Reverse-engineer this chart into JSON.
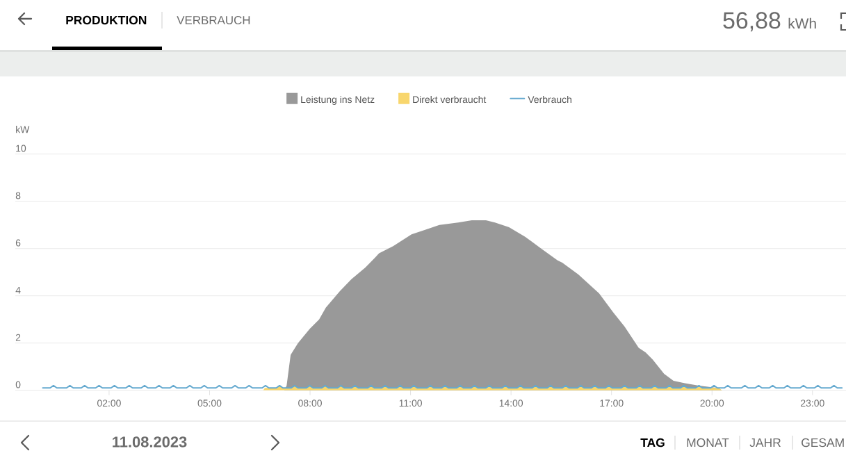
{
  "chart_data": {
    "type": "area",
    "ylabel": "kW",
    "annotations": [
      "PRODUKTION",
      "VERBRAUCH",
      "56,88",
      "kWh",
      "11.08.2023",
      "TAG",
      "MONAT",
      "JAHR",
      "GESAM"
    ],
    "xlim": [
      -0.8,
      24
    ],
    "ylim": [
      0,
      10
    ],
    "xticks": [
      {
        "value": 2,
        "label": "02:00"
      },
      {
        "value": 5,
        "label": "05:00"
      },
      {
        "value": 8,
        "label": "08:00"
      },
      {
        "value": 11,
        "label": "11:00"
      },
      {
        "value": 14,
        "label": "14:00"
      },
      {
        "value": 17,
        "label": "17:00"
      },
      {
        "value": 20,
        "label": "20:00"
      },
      {
        "value": 23,
        "label": "23:00"
      }
    ],
    "yticks": [
      0,
      2,
      4,
      6,
      8,
      10
    ],
    "grid": "y",
    "legend": "top",
    "series": [
      {
        "name": "Leistung ins Netz",
        "color": "#999999",
        "x": [
          7.23,
          7.3,
          7.42,
          7.64,
          7.99,
          8.27,
          8.47,
          8.89,
          9.23,
          9.65,
          9.93,
          10.06,
          10.48,
          11.03,
          11.45,
          11.86,
          12.42,
          12.83,
          13.25,
          13.52,
          13.94,
          14.42,
          14.9,
          15.39,
          15.53,
          16.01,
          16.63,
          17.05,
          17.39,
          17.81,
          18.02,
          18.23,
          18.57,
          18.85,
          19.19,
          19.61,
          20.15,
          20.3
        ],
        "values": [
          0,
          0.2,
          1.5,
          2.0,
          2.6,
          3.0,
          3.5,
          4.2,
          4.7,
          5.2,
          5.6,
          5.8,
          6.1,
          6.6,
          6.8,
          7.0,
          7.1,
          7.2,
          7.2,
          7.1,
          6.9,
          6.5,
          6.0,
          5.5,
          5.4,
          4.9,
          4.1,
          3.3,
          2.7,
          1.8,
          1.6,
          1.3,
          0.7,
          0.4,
          0.3,
          0.2,
          0.1,
          0
        ]
      },
      {
        "name": "Direkt verbraucht",
        "color": "#F8D66D",
        "x": [
          6.6,
          6.65,
          6.99,
          7.09,
          7.19,
          7.44,
          7.54,
          7.64,
          7.89,
          7.99,
          8.09,
          8.35,
          8.45,
          8.55,
          8.82,
          8.92,
          9.02,
          9.24,
          9.34,
          9.44,
          9.72,
          9.82,
          9.92,
          10.14,
          10.24,
          10.34,
          10.59,
          10.69,
          10.79,
          11.0,
          11.1,
          11.2,
          11.49,
          11.59,
          11.69,
          11.93,
          12.03,
          12.13,
          12.38,
          12.48,
          12.58,
          12.81,
          12.91,
          13.01,
          13.25,
          13.35,
          13.45,
          13.73,
          13.83,
          13.93,
          14.18,
          14.28,
          14.38,
          14.63,
          14.73,
          14.83,
          15.08,
          15.18,
          15.28,
          15.53,
          15.63,
          15.73,
          15.98,
          16.08,
          16.18,
          16.4,
          16.5,
          16.6,
          16.82,
          16.92,
          17.02,
          17.29,
          17.39,
          17.49,
          17.74,
          17.84,
          17.94,
          18.19,
          18.29,
          18.39,
          18.63,
          18.73,
          18.83,
          19.06,
          19.16,
          19.26,
          19.51,
          19.61,
          19.71,
          20.2,
          20.3
        ],
        "values": [
          0,
          0.1,
          0.1,
          0.2,
          0.1,
          0.1,
          0.2,
          0.1,
          0.1,
          0.2,
          0.1,
          0.1,
          0.2,
          0.1,
          0.1,
          0.2,
          0.1,
          0.1,
          0.2,
          0.1,
          0.1,
          0.2,
          0.1,
          0.1,
          0.2,
          0.1,
          0.1,
          0.2,
          0.1,
          0.1,
          0.2,
          0.1,
          0.1,
          0.2,
          0.1,
          0.1,
          0.2,
          0.1,
          0.1,
          0.2,
          0.1,
          0.1,
          0.2,
          0.1,
          0.1,
          0.2,
          0.1,
          0.1,
          0.2,
          0.1,
          0.1,
          0.2,
          0.1,
          0.1,
          0.2,
          0.1,
          0.1,
          0.2,
          0.1,
          0.1,
          0.2,
          0.1,
          0.1,
          0.2,
          0.1,
          0.1,
          0.2,
          0.1,
          0.1,
          0.2,
          0.1,
          0.1,
          0.2,
          0.1,
          0.1,
          0.2,
          0.1,
          0.1,
          0.2,
          0.1,
          0.1,
          0.2,
          0.1,
          0.1,
          0.2,
          0.1,
          0.1,
          0.2,
          0.1,
          0.1,
          0
        ]
      },
      {
        "name": "Verbrauch",
        "type": "line",
        "color": "#64A9CF",
        "x": [
          0.02,
          0.24,
          0.34,
          0.44,
          0.73,
          0.83,
          0.93,
          1.17,
          1.27,
          1.37,
          1.6,
          1.7,
          1.8,
          2.06,
          2.16,
          2.26,
          2.5,
          2.6,
          2.7,
          2.96,
          3.06,
          3.16,
          3.39,
          3.49,
          3.59,
          3.82,
          3.92,
          4.02,
          4.31,
          4.41,
          4.51,
          4.74,
          4.84,
          4.94,
          5.19,
          5.29,
          5.39,
          5.66,
          5.76,
          5.86,
          6.08,
          6.18,
          6.28,
          6.57,
          6.67,
          6.77,
          6.99,
          7.09,
          7.19,
          7.44,
          7.54,
          7.64,
          7.89,
          7.99,
          8.09,
          8.35,
          8.45,
          8.55,
          8.82,
          8.92,
          9.02,
          9.24,
          9.34,
          9.44,
          9.72,
          9.82,
          9.92,
          10.14,
          10.24,
          10.34,
          10.59,
          10.69,
          10.79,
          11.0,
          11.1,
          11.2,
          11.49,
          11.59,
          11.69,
          11.93,
          12.03,
          12.13,
          12.38,
          12.48,
          12.58,
          12.81,
          12.91,
          13.01,
          13.25,
          13.35,
          13.45,
          13.73,
          13.83,
          13.93,
          14.18,
          14.28,
          14.38,
          14.63,
          14.73,
          14.83,
          15.08,
          15.18,
          15.28,
          15.53,
          15.63,
          15.73,
          15.98,
          16.08,
          16.18,
          16.4,
          16.5,
          16.6,
          16.82,
          16.92,
          17.02,
          17.29,
          17.39,
          17.49,
          17.74,
          17.84,
          17.94,
          18.19,
          18.29,
          18.39,
          18.63,
          18.73,
          18.83,
          19.06,
          19.16,
          19.26,
          19.51,
          19.61,
          19.71,
          19.96,
          20.06,
          20.16,
          20.37,
          20.47,
          20.57,
          20.88,
          20.98,
          21.08,
          21.29,
          21.39,
          21.49,
          21.71,
          21.81,
          21.91,
          22.15,
          22.25,
          22.35,
          22.63,
          22.73,
          22.83,
          23.06,
          23.16,
          23.26,
          23.54,
          23.64,
          23.74,
          23.88
        ],
        "values": [
          0.1,
          0.1,
          0.2,
          0.1,
          0.1,
          0.2,
          0.1,
          0.1,
          0.2,
          0.1,
          0.1,
          0.2,
          0.1,
          0.1,
          0.2,
          0.1,
          0.1,
          0.2,
          0.1,
          0.1,
          0.2,
          0.1,
          0.1,
          0.2,
          0.1,
          0.1,
          0.2,
          0.1,
          0.1,
          0.2,
          0.1,
          0.1,
          0.2,
          0.1,
          0.1,
          0.2,
          0.1,
          0.1,
          0.2,
          0.1,
          0.1,
          0.2,
          0.1,
          0.1,
          0.2,
          0.1,
          0.1,
          0.2,
          0.1,
          0.1,
          0.2,
          0.1,
          0.1,
          0.2,
          0.1,
          0.1,
          0.2,
          0.1,
          0.1,
          0.2,
          0.1,
          0.1,
          0.2,
          0.1,
          0.1,
          0.2,
          0.1,
          0.1,
          0.2,
          0.1,
          0.1,
          0.2,
          0.1,
          0.1,
          0.2,
          0.1,
          0.1,
          0.2,
          0.1,
          0.1,
          0.2,
          0.1,
          0.1,
          0.2,
          0.1,
          0.1,
          0.2,
          0.1,
          0.1,
          0.2,
          0.1,
          0.1,
          0.2,
          0.1,
          0.1,
          0.2,
          0.1,
          0.1,
          0.2,
          0.1,
          0.1,
          0.2,
          0.1,
          0.1,
          0.2,
          0.1,
          0.1,
          0.2,
          0.1,
          0.1,
          0.2,
          0.1,
          0.1,
          0.2,
          0.1,
          0.1,
          0.2,
          0.1,
          0.1,
          0.2,
          0.1,
          0.1,
          0.2,
          0.1,
          0.1,
          0.2,
          0.1,
          0.1,
          0.2,
          0.1,
          0.1,
          0.2,
          0.1,
          0.1,
          0.2,
          0.1,
          0.1,
          0.2,
          0.1,
          0.1,
          0.2,
          0.1,
          0.1,
          0.2,
          0.1,
          0.1,
          0.2,
          0.1,
          0.1,
          0.2,
          0.1,
          0.1,
          0.2,
          0.1,
          0.1,
          0.2,
          0.1,
          0.1,
          0.2,
          0.1,
          0.1
        ]
      }
    ]
  }
}
